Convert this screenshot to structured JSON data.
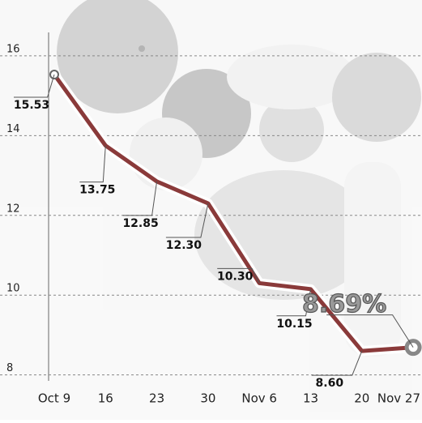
{
  "chart_data": {
    "type": "line",
    "categories": [
      "Oct 9",
      "16",
      "23",
      "30",
      "Nov 6",
      "13",
      "20",
      "Nov 27"
    ],
    "values": [
      15.53,
      13.75,
      12.85,
      12.3,
      10.3,
      10.15,
      8.6,
      8.69
    ],
    "value_labels": [
      "15.53",
      "13.75",
      "12.85",
      "12.30",
      "10.30",
      "10.15",
      "8.60",
      "8.69%"
    ],
    "color": "#8a3a3a",
    "ylim": [
      7.85,
      17.4
    ],
    "yticks": [
      8,
      10,
      12,
      14,
      16
    ],
    "grid": true
  }
}
